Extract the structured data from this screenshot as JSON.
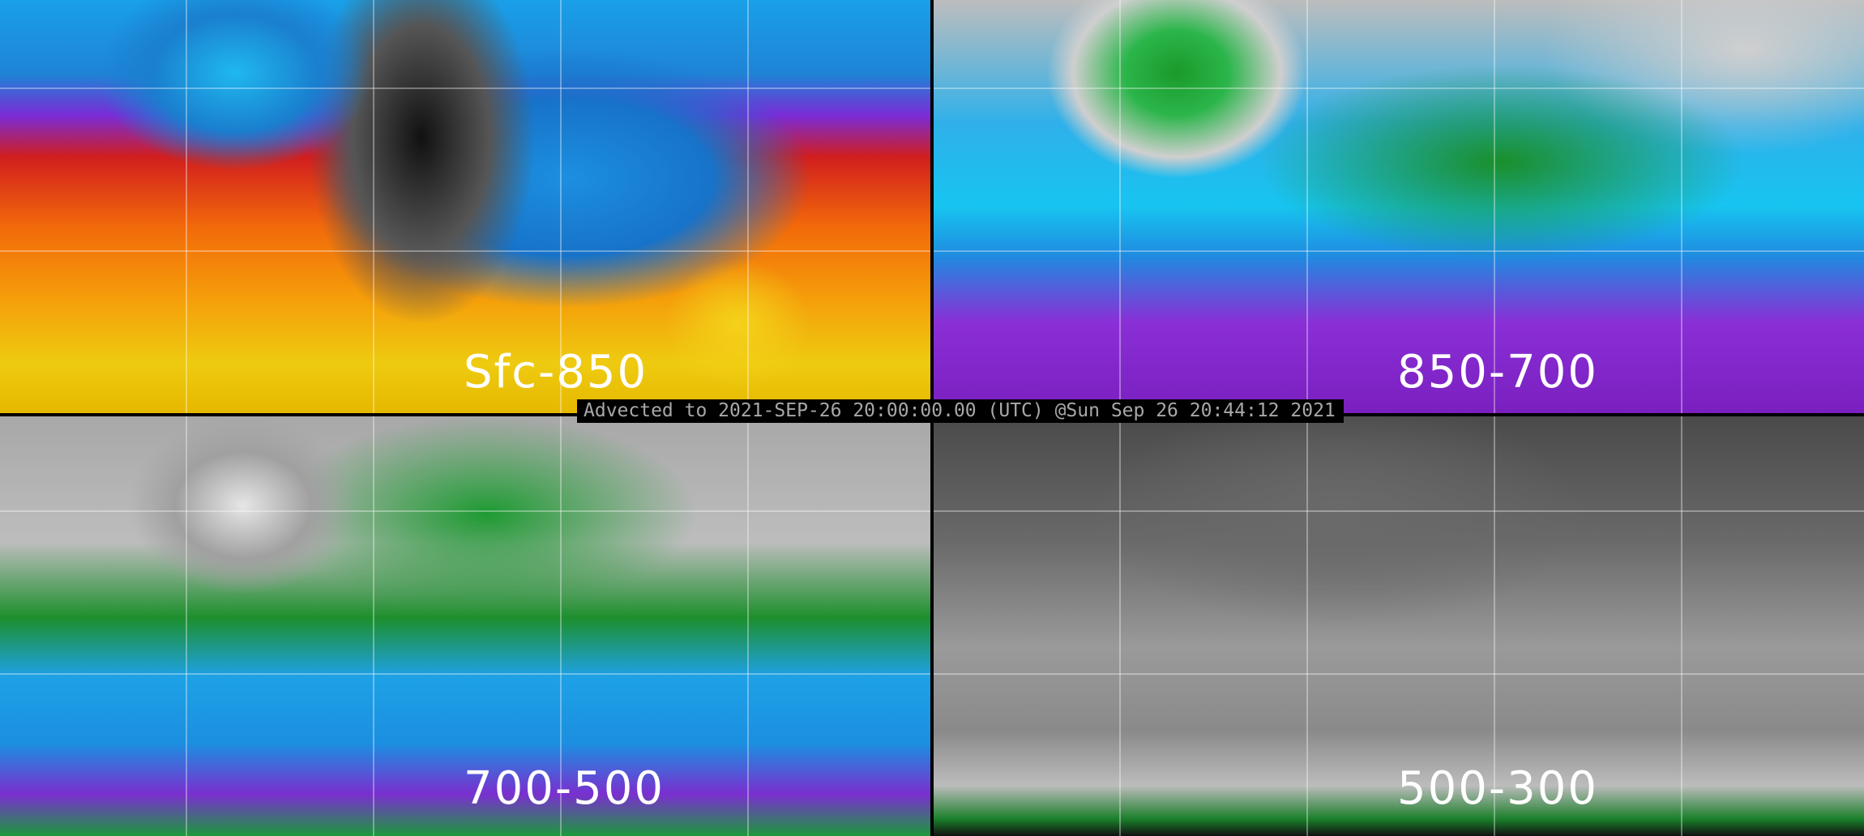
{
  "panels": [
    {
      "label": "Sfc-850",
      "palette": [
        "#e6b800",
        "#f26a0a",
        "#d11e1e",
        "#7a2bd6",
        "#1a7fcf",
        "#111111"
      ]
    },
    {
      "label": "850-700",
      "palette": [
        "#7a1fbf",
        "#17c4f0",
        "#1a9a2a",
        "#cfcfcf"
      ]
    },
    {
      "label": "700-500",
      "palette": [
        "#7a2fd0",
        "#1ea1e6",
        "#1d8f2d",
        "#bdbdbd"
      ]
    },
    {
      "label": "500-300",
      "palette": [
        "#1a7f2a",
        "#9a9a9a",
        "#4a4a4a"
      ]
    }
  ],
  "banner": {
    "text": "Advected to 2021-SEP-26 20:00:00.00 (UTC) @Sun Sep 26 20:44:12 2021"
  }
}
